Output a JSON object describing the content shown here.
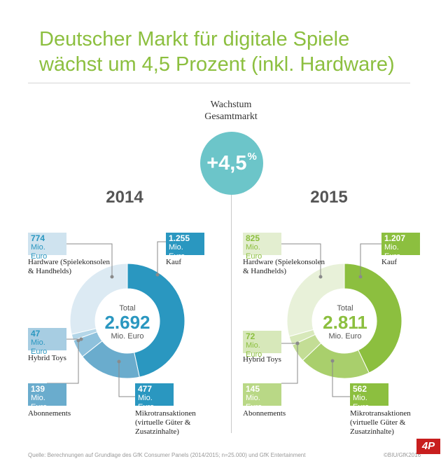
{
  "title_line1": "Deutscher Markt für digitale Spiele",
  "title_line2": "wächst um 4,5 Prozent (inkl. Hardware)",
  "growth": {
    "label_line1": "Wachstum",
    "label_line2": "Gesamtmarkt",
    "value": "+4,5",
    "unit": "%"
  },
  "footer": "Quelle: Berechnungen auf Grundlage des GfK Consumer Panels (2014/2015; n=25.000) und GfK Entertainment",
  "copyright": "©BIU/GfK2016",
  "logo_text": "4P",
  "colors": {
    "title": "#8cbf3f",
    "growth": "#6cc5c9",
    "blue_dark": "#2a97c0",
    "green_dark": "#8cbf3f"
  },
  "chart_data": [
    {
      "type": "pie",
      "year": "2014",
      "total_label": "Total",
      "total_value": "2.692",
      "total_unit": "Mio. Euro",
      "unit": "Mio. Euro",
      "segments": [
        {
          "value": 1255,
          "value_text": "1.255",
          "label": "Kauf",
          "color": "#2a97c0",
          "box_color": "#2a97c0"
        },
        {
          "value": 477,
          "value_text": "477",
          "label": "Mikrotransaktionen (virtuelle Güter & Zusatzinhalte)",
          "color": "#6aaccd",
          "box_color": "#2a97c0"
        },
        {
          "value": 139,
          "value_text": "139",
          "label": "Abonnements",
          "color": "#8ec1dc",
          "box_color": "#6aaccd"
        },
        {
          "value": 47,
          "value_text": "47",
          "label": "Hybrid Toys",
          "color": "#b4d6e8",
          "box_color": "#a7cde2"
        },
        {
          "value": 774,
          "value_text": "774",
          "label": "Hardware (Spielekonsolen & Handhelds)",
          "color": "#dceaf3",
          "box_color": "#cfe3ef"
        }
      ]
    },
    {
      "type": "pie",
      "year": "2015",
      "total_label": "Total",
      "total_value": "2.811",
      "total_unit": "Mio. Euro",
      "unit": "Mio. Euro",
      "segments": [
        {
          "value": 1207,
          "value_text": "1.207",
          "label": "Kauf",
          "color": "#8cbf3f",
          "box_color": "#8cbf3f"
        },
        {
          "value": 562,
          "value_text": "562",
          "label": "Mikrotransaktionen (virtuelle Güter & Zusatzinhalte)",
          "color": "#a9cf6c",
          "box_color": "#8cbf3f"
        },
        {
          "value": 145,
          "value_text": "145",
          "label": "Abonnements",
          "color": "#c3dd95",
          "box_color": "#b9d886"
        },
        {
          "value": 72,
          "value_text": "72",
          "label": "Hybrid Toys",
          "color": "#d7e8ba",
          "box_color": "#d7e8ba"
        },
        {
          "value": 825,
          "value_text": "825",
          "label": "Hardware (Spielekonsolen & Handhelds)",
          "color": "#e8f1d9",
          "box_color": "#e3eed0"
        }
      ]
    }
  ]
}
